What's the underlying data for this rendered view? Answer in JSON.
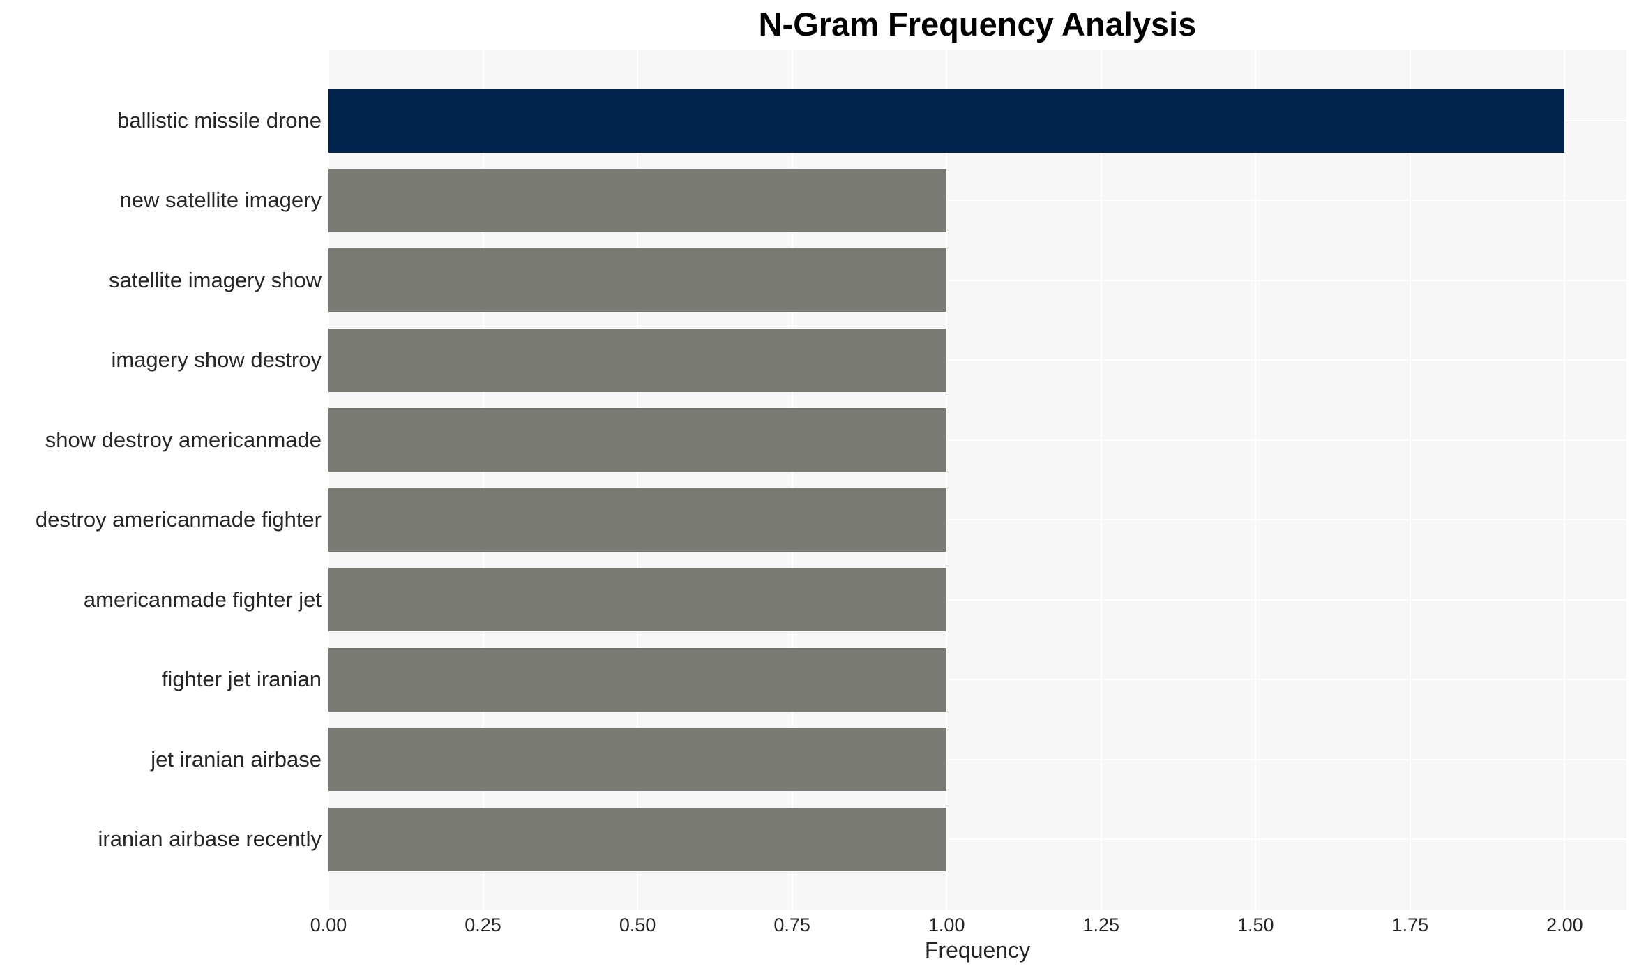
{
  "title": "N-Gram Frequency Analysis",
  "chart_data": {
    "type": "bar",
    "orientation": "horizontal",
    "title": "N-Gram Frequency Analysis",
    "categories": [
      "ballistic missile drone",
      "new satellite imagery",
      "satellite imagery show",
      "imagery show destroy",
      "show destroy americanmade",
      "destroy americanmade fighter",
      "americanmade fighter jet",
      "fighter jet iranian",
      "jet iranian airbase",
      "iranian airbase recently"
    ],
    "values": [
      2,
      1,
      1,
      1,
      1,
      1,
      1,
      1,
      1,
      1
    ],
    "xlabel": "Frequency",
    "ylabel": "",
    "xlim": [
      0,
      2.1
    ],
    "xtick_values": [
      0,
      0.25,
      0.5,
      0.75,
      1.0,
      1.25,
      1.5,
      1.75,
      2.0
    ],
    "xtick_labels": [
      "0.00",
      "0.25",
      "0.50",
      "0.75",
      "1.00",
      "1.25",
      "1.50",
      "1.75",
      "2.00"
    ],
    "grid": true,
    "legend": "none",
    "bar_colors": [
      "#02234d",
      "#7a7a75",
      "#7a7a75",
      "#7a7a75",
      "#7a7a75",
      "#7a7a75",
      "#7a7a75",
      "#7a7a75",
      "#7a7a75",
      "#7a7a75"
    ],
    "colors": {
      "highlight_bar": "#02234d",
      "default_bar": "#7a7a75",
      "plot_background": "#f7f7f7",
      "grid_line": "#ffffff",
      "axis_text": "#262626",
      "title_text": "#000000"
    }
  }
}
